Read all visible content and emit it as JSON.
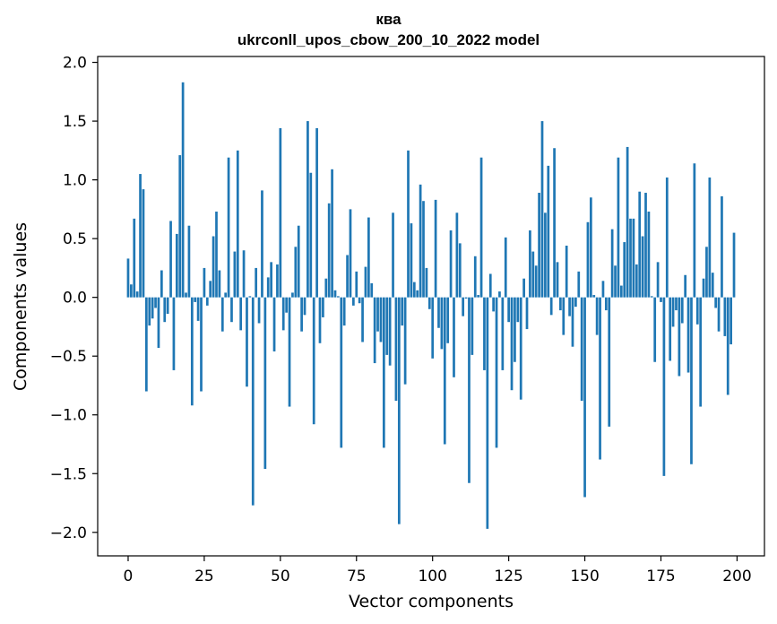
{
  "chart_data": {
    "type": "bar",
    "title": "ква",
    "subtitle": "ukrconll_upos_cbow_200_10_2022 model",
    "xlabel": "Vector components",
    "ylabel": "Components values",
    "xlim": [
      -10,
      209
    ],
    "ylim": [
      -2.2,
      2.05
    ],
    "xticks": [
      0,
      25,
      50,
      75,
      100,
      125,
      150,
      175,
      200
    ],
    "xtick_labels": [
      "0",
      "25",
      "50",
      "75",
      "100",
      "125",
      "150",
      "175",
      "200"
    ],
    "yticks": [
      2.0,
      1.5,
      1.0,
      0.5,
      0.0,
      -0.5,
      -1.0,
      -1.5,
      -2.0
    ],
    "ytick_labels": [
      "2.0",
      "1.5",
      "1.0",
      "0.5",
      "0.0",
      "−0.5",
      "−1.0",
      "−1.5",
      "−2.0"
    ],
    "grid": false,
    "bar_color": "#1f77b4",
    "x": [
      0,
      1,
      2,
      3,
      4,
      5,
      6,
      7,
      8,
      9,
      10,
      11,
      12,
      13,
      14,
      15,
      16,
      17,
      18,
      19,
      20,
      21,
      22,
      23,
      24,
      25,
      26,
      27,
      28,
      29,
      30,
      31,
      32,
      33,
      34,
      35,
      36,
      37,
      38,
      39,
      40,
      41,
      42,
      43,
      44,
      45,
      46,
      47,
      48,
      49,
      50,
      51,
      52,
      53,
      54,
      55,
      56,
      57,
      58,
      59,
      60,
      61,
      62,
      63,
      64,
      65,
      66,
      67,
      68,
      69,
      70,
      71,
      72,
      73,
      74,
      75,
      76,
      77,
      78,
      79,
      80,
      81,
      82,
      83,
      84,
      85,
      86,
      87,
      88,
      89,
      90,
      91,
      92,
      93,
      94,
      95,
      96,
      97,
      98,
      99,
      100,
      101,
      102,
      103,
      104,
      105,
      106,
      107,
      108,
      109,
      110,
      111,
      112,
      113,
      114,
      115,
      116,
      117,
      118,
      119,
      120,
      121,
      122,
      123,
      124,
      125,
      126,
      127,
      128,
      129,
      130,
      131,
      132,
      133,
      134,
      135,
      136,
      137,
      138,
      139,
      140,
      141,
      142,
      143,
      144,
      145,
      146,
      147,
      148,
      149,
      150,
      151,
      152,
      153,
      154,
      155,
      156,
      157,
      158,
      159,
      160,
      161,
      162,
      163,
      164,
      165,
      166,
      167,
      168,
      169,
      170,
      171,
      172,
      173,
      174,
      175,
      176,
      177,
      178,
      179,
      180,
      181,
      182,
      183,
      184,
      185,
      186,
      187,
      188,
      189,
      190,
      191,
      192,
      193,
      194,
      195,
      196,
      197,
      198,
      199
    ],
    "values": [
      0.33,
      0.11,
      0.67,
      0.05,
      1.05,
      0.92,
      -0.8,
      -0.24,
      -0.18,
      -0.09,
      -0.43,
      0.23,
      -0.21,
      -0.14,
      0.65,
      -0.62,
      0.54,
      1.21,
      1.83,
      0.04,
      0.61,
      -0.92,
      -0.04,
      -0.2,
      -0.8,
      0.25,
      -0.07,
      0.14,
      0.52,
      0.73,
      0.23,
      -0.29,
      0.04,
      1.19,
      -0.21,
      0.39,
      1.25,
      -0.28,
      0.4,
      -0.76,
      0.01,
      -1.77,
      0.25,
      -0.22,
      0.91,
      -1.46,
      0.17,
      0.3,
      -0.46,
      0.28,
      1.44,
      -0.28,
      -0.13,
      -0.93,
      0.04,
      0.43,
      0.61,
      -0.29,
      -0.15,
      1.5,
      1.06,
      -1.08,
      1.44,
      -0.39,
      -0.17,
      0.16,
      0.8,
      1.09,
      0.06,
      0.01,
      -1.28,
      -0.24,
      0.36,
      0.75,
      -0.07,
      0.22,
      -0.05,
      -0.38,
      0.26,
      0.68,
      0.12,
      -0.56,
      -0.29,
      -0.38,
      -1.28,
      -0.49,
      -0.58,
      0.72,
      -0.88,
      -1.93,
      -0.24,
      -0.74,
      1.25,
      0.63,
      0.13,
      0.06,
      0.96,
      0.82,
      0.25,
      -0.1,
      -0.52,
      0.83,
      -0.26,
      -0.44,
      -1.25,
      -0.39,
      0.57,
      -0.68,
      0.72,
      0.46,
      -0.16,
      -0.01,
      -1.58,
      -0.49,
      0.35,
      0.02,
      1.19,
      -0.62,
      -1.97,
      0.2,
      -0.12,
      -1.28,
      0.05,
      -0.62,
      0.51,
      -0.21,
      -0.79,
      -0.55,
      -0.21,
      -0.87,
      0.16,
      -0.27,
      0.57,
      0.39,
      0.27,
      0.89,
      1.5,
      0.72,
      1.12,
      -0.15,
      1.27,
      0.3,
      -0.11,
      -0.32,
      0.44,
      -0.16,
      -0.42,
      -0.08,
      0.22,
      -0.88,
      -1.7,
      0.64,
      0.85,
      0.02,
      -0.32,
      -1.38,
      0.14,
      -0.11,
      -1.1,
      0.58,
      0.27,
      1.19,
      0.1,
      0.47,
      1.28,
      0.67,
      0.67,
      0.28,
      0.9,
      0.52,
      0.89,
      0.73,
      0.01,
      -0.55,
      0.3,
      -0.04,
      -1.52,
      1.02,
      -0.54,
      -0.25,
      -0.11,
      -0.67,
      -0.22,
      0.19,
      -0.64,
      -1.42,
      1.14,
      -0.23,
      -0.93,
      0.16,
      0.43,
      1.02,
      0.21,
      -0.09,
      -0.29,
      0.86,
      -0.33,
      -0.83,
      -0.4,
      0.55
    ]
  }
}
